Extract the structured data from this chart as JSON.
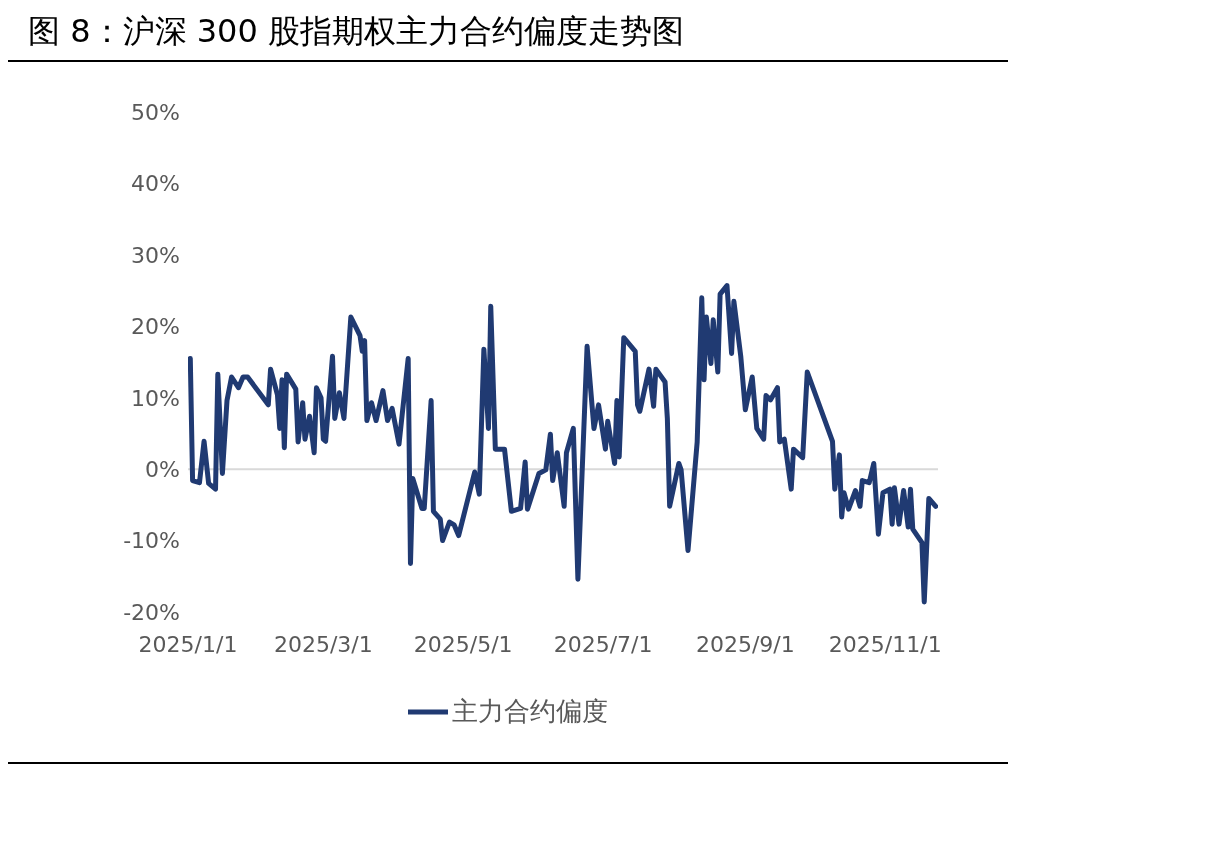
{
  "chart_data": {
    "type": "line",
    "title": "图 8：沪深 300 股指期权主力合约偏度走势图",
    "x": [
      "2025-01-02",
      "2025-01-03",
      "2025-01-06",
      "2025-01-08",
      "2025-01-10",
      "2025-01-13",
      "2025-01-14",
      "2025-01-16",
      "2025-01-18",
      "2025-01-20",
      "2025-01-23",
      "2025-01-25",
      "2025-01-27",
      "2025-02-05",
      "2025-02-06",
      "2025-02-09",
      "2025-02-10",
      "2025-02-11",
      "2025-02-12",
      "2025-02-13",
      "2025-02-17",
      "2025-02-18",
      "2025-02-20",
      "2025-02-21",
      "2025-02-23",
      "2025-02-25",
      "2025-02-26",
      "2025-02-28",
      "2025-03-01",
      "2025-03-02",
      "2025-03-05",
      "2025-03-06",
      "2025-03-08",
      "2025-03-10",
      "2025-03-13",
      "2025-03-17",
      "2025-03-18",
      "2025-03-19",
      "2025-03-20",
      "2025-03-22",
      "2025-03-24",
      "2025-03-27",
      "2025-03-29",
      "2025-03-31",
      "2025-04-03",
      "2025-04-07",
      "2025-04-08",
      "2025-04-09",
      "2025-04-13",
      "2025-04-14",
      "2025-04-17",
      "2025-04-18",
      "2025-04-21",
      "2025-04-22",
      "2025-04-25",
      "2025-04-27",
      "2025-04-29",
      "2025-05-06",
      "2025-05-08",
      "2025-05-10",
      "2025-05-12",
      "2025-05-13",
      "2025-05-15",
      "2025-05-19",
      "2025-05-22",
      "2025-05-26",
      "2025-05-28",
      "2025-05-29",
      "2025-06-03",
      "2025-06-06",
      "2025-06-08",
      "2025-06-09",
      "2025-06-11",
      "2025-06-14",
      "2025-06-15",
      "2025-06-18",
      "2025-06-20",
      "2025-06-24",
      "2025-06-27",
      "2025-06-29",
      "2025-07-02",
      "2025-07-03",
      "2025-07-06",
      "2025-07-07",
      "2025-07-08",
      "2025-07-10",
      "2025-07-15",
      "2025-07-16",
      "2025-07-17",
      "2025-07-21",
      "2025-07-23",
      "2025-07-24",
      "2025-07-28",
      "2025-07-29",
      "2025-07-30",
      "2025-08-03",
      "2025-08-04",
      "2025-08-07",
      "2025-08-11",
      "2025-08-13",
      "2025-08-14",
      "2025-08-15",
      "2025-08-17",
      "2025-08-18",
      "2025-08-20",
      "2025-08-21",
      "2025-08-24",
      "2025-08-26",
      "2025-08-27",
      "2025-08-30",
      "2025-09-01",
      "2025-09-04",
      "2025-09-06",
      "2025-09-09",
      "2025-09-10",
      "2025-09-12",
      "2025-09-15",
      "2025-09-16",
      "2025-09-18",
      "2025-09-21",
      "2025-09-22",
      "2025-09-26",
      "2025-09-28",
      "2025-10-09",
      "2025-10-10",
      "2025-10-12",
      "2025-10-13",
      "2025-10-14",
      "2025-10-16",
      "2025-10-19",
      "2025-10-21",
      "2025-10-22",
      "2025-10-25",
      "2025-10-27",
      "2025-10-29",
      "2025-10-31",
      "2025-11-03",
      "2025-11-04",
      "2025-11-05",
      "2025-11-07",
      "2025-11-09",
      "2025-11-11",
      "2025-11-12",
      "2025-11-13",
      "2025-11-17",
      "2025-11-18",
      "2025-11-20",
      "2025-11-23"
    ],
    "series": [
      {
        "name": "主力合约偏度",
        "color": "#203a72",
        "values": [
          15.5,
          -1.6,
          -1.9,
          3.9,
          -2,
          -2.8,
          13.3,
          -0.6,
          9.6,
          12.9,
          11.4,
          12.9,
          12.9,
          9,
          14,
          10.4,
          5.7,
          12.5,
          3,
          13.3,
          11.2,
          3.8,
          9.3,
          4.2,
          7.4,
          2.3,
          11.4,
          10,
          4.2,
          3.9,
          15.8,
          7.1,
          10.7,
          7.1,
          21.3,
          18.7,
          16.5,
          18,
          6.8,
          9.3,
          6.8,
          11,
          6.8,
          8.5,
          3.5,
          15.5,
          -13.2,
          -1.3,
          -5.5,
          -5.5,
          9.6,
          -5.9,
          -7,
          -10,
          -7.4,
          -7.8,
          -9.3,
          -0.4,
          -3.5,
          16.8,
          5.7,
          22.8,
          2.8,
          2.8,
          -5.9,
          -5.5,
          1,
          -5.6,
          -0.6,
          -0.1,
          4.9,
          -1.6,
          2.3,
          -5.2,
          2.3,
          5.7,
          -15.4,
          17.2,
          5.7,
          9,
          2.8,
          6.7,
          0.8,
          9.6,
          1.7,
          18.4,
          16.5,
          9,
          8.1,
          14,
          8.8,
          14,
          12.2,
          7.1,
          -5.2,
          0.8,
          -0.1,
          -11.4,
          3.8,
          24,
          12.5,
          21.3,
          14.8,
          20.9,
          13.6,
          24.5,
          25.7,
          16.2,
          23.5,
          15.8,
          8.3,
          12.9,
          5.7,
          4.2,
          10.3,
          9.7,
          11.4,
          3.8,
          4.2,
          -2.8,
          2.8,
          1.6,
          13.6,
          3.9,
          -2.8,
          2,
          -6.7,
          -3.3,
          -5.6,
          -3,
          -5.2,
          -1.6,
          -1.9,
          0.8,
          -9.1,
          -3.3,
          -2.8,
          -7.7,
          -2.6,
          -7.7,
          -3,
          -8.1,
          -2.8,
          -8.4,
          -10.3,
          -18.6,
          -4.1,
          -5.2
        ]
      }
    ],
    "xlim": [
      "2025-01-01",
      "2025-11-24"
    ],
    "xticks": [
      {
        "value": "2025-01-01",
        "label": "2025/1/1"
      },
      {
        "value": "2025-03-01",
        "label": "2025/3/1"
      },
      {
        "value": "2025-05-01",
        "label": "2025/5/1"
      },
      {
        "value": "2025-07-01",
        "label": "2025/7/1"
      },
      {
        "value": "2025-09-01",
        "label": "2025/9/1"
      },
      {
        "value": "2025-11-01",
        "label": "2025/11/1"
      }
    ],
    "ylim": [
      -20,
      50
    ],
    "yticks": [
      {
        "value": -20,
        "label": "-20%"
      },
      {
        "value": -10,
        "label": "-10%"
      },
      {
        "value": 0,
        "label": "0%"
      },
      {
        "value": 10,
        "label": "10%"
      },
      {
        "value": 20,
        "label": "20%"
      },
      {
        "value": 30,
        "label": "30%"
      },
      {
        "value": 40,
        "label": "40%"
      },
      {
        "value": 50,
        "label": "50%"
      }
    ],
    "ref_lines": [
      {
        "axis": "y",
        "value": 0,
        "color": "#d9d9d9"
      }
    ],
    "grid": false,
    "legend": "bottom",
    "marker": "none",
    "line_style": "solid"
  }
}
